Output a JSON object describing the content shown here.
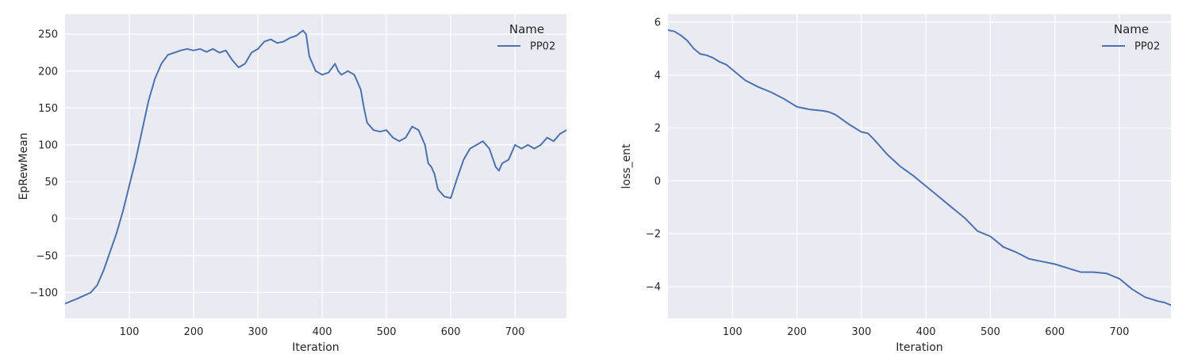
{
  "chart_data": [
    {
      "type": "line",
      "xlabel": "Iteration",
      "ylabel": "EpRewMean",
      "xlim": [
        0,
        780
      ],
      "ylim": [
        -135,
        277
      ],
      "xticks": [
        100,
        200,
        300,
        400,
        500,
        600,
        700
      ],
      "yticks": [
        -100,
        -50,
        0,
        50,
        100,
        150,
        200,
        250
      ],
      "grid": true,
      "legend": {
        "title": "Name",
        "position": "top-right"
      },
      "series": [
        {
          "name": "PP02",
          "color": "#4c72b0",
          "x": [
            0,
            20,
            40,
            50,
            60,
            70,
            80,
            90,
            100,
            110,
            120,
            130,
            140,
            150,
            160,
            170,
            180,
            190,
            200,
            210,
            220,
            230,
            240,
            250,
            260,
            270,
            280,
            290,
            300,
            310,
            320,
            330,
            340,
            350,
            360,
            370,
            375,
            380,
            390,
            400,
            410,
            420,
            425,
            430,
            440,
            450,
            455,
            460,
            465,
            470,
            480,
            490,
            500,
            510,
            520,
            530,
            540,
            550,
            560,
            565,
            570,
            575,
            580,
            590,
            600,
            610,
            620,
            630,
            640,
            650,
            660,
            670,
            675,
            680,
            690,
            700,
            710,
            720,
            730,
            740,
            750,
            760,
            770,
            780
          ],
          "y": [
            -115,
            -108,
            -100,
            -90,
            -70,
            -45,
            -20,
            10,
            45,
            80,
            120,
            160,
            190,
            210,
            222,
            225,
            228,
            230,
            228,
            230,
            226,
            230,
            225,
            228,
            215,
            205,
            210,
            225,
            230,
            240,
            243,
            238,
            240,
            245,
            248,
            255,
            250,
            220,
            200,
            195,
            198,
            210,
            200,
            195,
            200,
            195,
            185,
            175,
            150,
            130,
            120,
            118,
            120,
            110,
            105,
            110,
            125,
            120,
            100,
            75,
            70,
            60,
            40,
            30,
            28,
            55,
            80,
            95,
            100,
            105,
            95,
            70,
            65,
            75,
            80,
            100,
            95,
            100,
            95,
            100,
            110,
            105,
            115,
            120
          ]
        }
      ]
    },
    {
      "type": "line",
      "xlabel": "Iteration",
      "ylabel": "loss_ent",
      "xlim": [
        0,
        780
      ],
      "ylim": [
        -5.2,
        6.3
      ],
      "xticks": [
        100,
        200,
        300,
        400,
        500,
        600,
        700
      ],
      "yticks": [
        -4,
        -2,
        0,
        2,
        4,
        6
      ],
      "ytick_labels": [
        "−4",
        "−2",
        "0",
        "2",
        "4",
        "6"
      ],
      "grid": true,
      "legend": {
        "title": "Name",
        "position": "top-right"
      },
      "series": [
        {
          "name": "PP02",
          "color": "#4c72b0",
          "x": [
            0,
            10,
            20,
            30,
            40,
            50,
            60,
            70,
            80,
            90,
            100,
            120,
            140,
            160,
            180,
            200,
            220,
            240,
            250,
            260,
            280,
            300,
            310,
            320,
            340,
            360,
            380,
            400,
            420,
            440,
            460,
            480,
            500,
            520,
            540,
            560,
            580,
            600,
            620,
            640,
            660,
            680,
            700,
            720,
            740,
            760,
            770,
            780
          ],
          "y": [
            5.7,
            5.65,
            5.5,
            5.3,
            5.0,
            4.8,
            4.75,
            4.65,
            4.5,
            4.4,
            4.2,
            3.8,
            3.55,
            3.35,
            3.1,
            2.8,
            2.7,
            2.65,
            2.6,
            2.5,
            2.15,
            1.85,
            1.8,
            1.55,
            1.0,
            0.55,
            0.2,
            -0.2,
            -0.6,
            -1.0,
            -1.4,
            -1.9,
            -2.1,
            -2.5,
            -2.7,
            -2.95,
            -3.05,
            -3.15,
            -3.3,
            -3.45,
            -3.45,
            -3.5,
            -3.7,
            -4.1,
            -4.4,
            -4.55,
            -4.6,
            -4.7
          ]
        }
      ]
    }
  ]
}
